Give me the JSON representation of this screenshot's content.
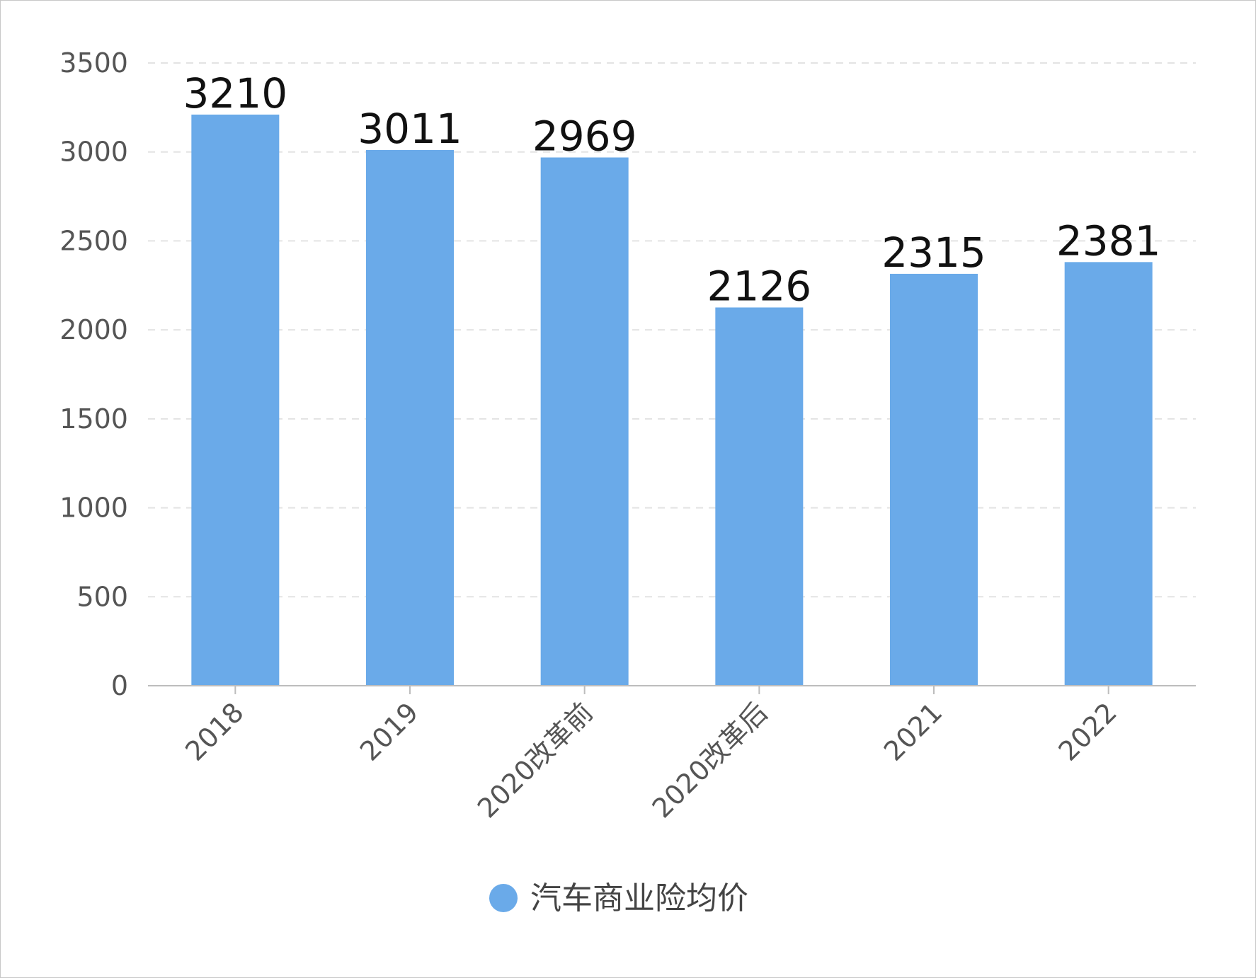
{
  "chart_data": {
    "type": "bar",
    "categories": [
      "2018",
      "2019",
      "2020改革前",
      "2020改革后",
      "2021",
      "2022"
    ],
    "series": [
      {
        "name": "汽车商业险均价",
        "values": [
          3210,
          3011,
          2969,
          2126,
          2315,
          2381
        ],
        "color": "#6aaae9"
      }
    ],
    "y_ticks": [
      "0",
      "500",
      "1000",
      "1500",
      "2000",
      "2500",
      "3000",
      "3500"
    ],
    "ylim": [
      0,
      3500
    ],
    "grid": "horizontal-dashed",
    "legend_position": "bottom-center",
    "x_tick_rotation": "45-degrees"
  }
}
